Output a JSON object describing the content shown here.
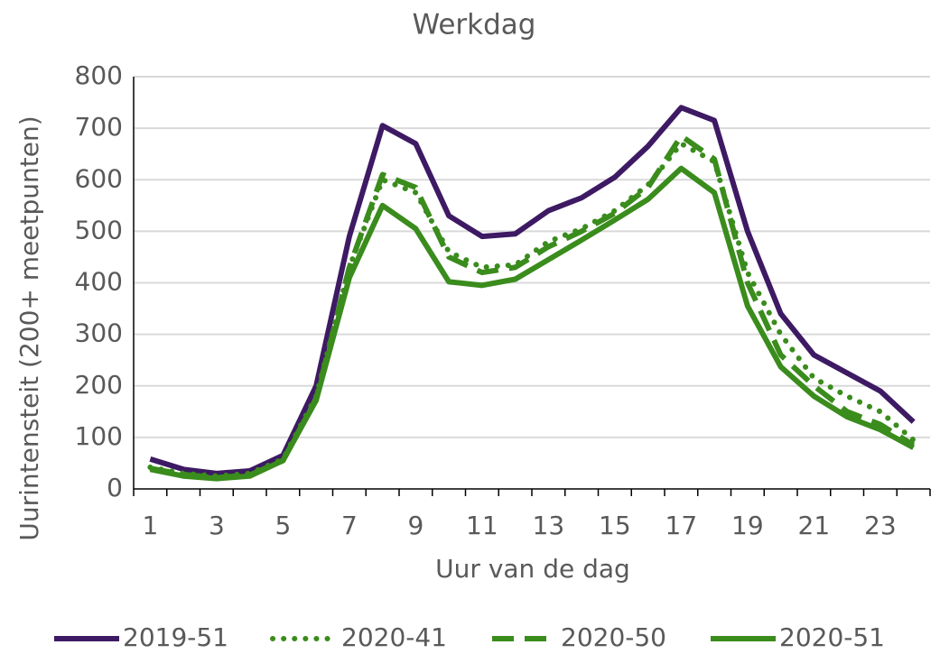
{
  "chart_data": {
    "type": "line",
    "title": "Werkdag",
    "x_label": "Uur van de dag",
    "y_label": "Uurintensteit (200+ meetpunten)",
    "categories": [
      "1",
      null,
      "3",
      null,
      "5",
      null,
      "7",
      null,
      "9",
      null,
      "11",
      null,
      "13",
      null,
      "15",
      null,
      "17",
      null,
      "19",
      null,
      "21",
      null,
      "23",
      null
    ],
    "series": [
      {
        "name": "2019-51",
        "color": "#3d1a63",
        "style": "solid",
        "values": [
          58,
          38,
          30,
          35,
          65,
          200,
          490,
          705,
          670,
          530,
          490,
          495,
          540,
          565,
          605,
          665,
          740,
          715,
          500,
          340,
          260,
          225,
          190,
          130
        ]
      },
      {
        "name": "2020-41",
        "color": "#3a8c1c",
        "style": "dotted",
        "values": [
          42,
          30,
          25,
          30,
          58,
          180,
          430,
          600,
          575,
          460,
          430,
          435,
          480,
          505,
          540,
          590,
          670,
          635,
          420,
          300,
          215,
          180,
          150,
          95
        ]
      },
      {
        "name": "2020-50",
        "color": "#3a8c1c",
        "style": "dashed",
        "values": [
          40,
          28,
          22,
          27,
          55,
          175,
          430,
          610,
          585,
          450,
          420,
          430,
          470,
          500,
          535,
          585,
          685,
          640,
          400,
          260,
          200,
          150,
          125,
          85
        ]
      },
      {
        "name": "2020-51",
        "color": "#3a8c1c",
        "style": "solid",
        "values": [
          38,
          25,
          20,
          25,
          55,
          172,
          410,
          550,
          505,
          402,
          395,
          407,
          445,
          483,
          522,
          562,
          622,
          575,
          355,
          237,
          180,
          140,
          115,
          80
        ]
      }
    ],
    "ylim": [
      0,
      800
    ],
    "yticks": [
      0,
      100,
      200,
      300,
      400,
      500,
      600,
      700,
      800
    ],
    "grid": true,
    "legend": "bottom"
  }
}
